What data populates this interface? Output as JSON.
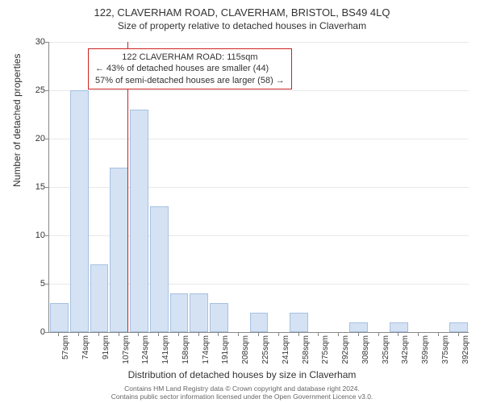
{
  "title": "122, CLAVERHAM ROAD, CLAVERHAM, BRISTOL, BS49 4LQ",
  "subtitle": "Size of property relative to detached houses in Claverham",
  "ylabel": "Number of detached properties",
  "xlabel": "Distribution of detached houses by size in Claverham",
  "chart": {
    "type": "histogram",
    "ylim": [
      0,
      30
    ],
    "ytick_step": 5,
    "bar_fill": "#d4e2f4",
    "bar_stroke": "#a8c0e0",
    "grid_color": "#e8e8e8",
    "axis_color": "#888888",
    "refline_color": "#cc2222",
    "refline_x_value": 115,
    "x_categories": [
      "57sqm",
      "74sqm",
      "91sqm",
      "107sqm",
      "124sqm",
      "141sqm",
      "158sqm",
      "174sqm",
      "191sqm",
      "208sqm",
      "225sqm",
      "241sqm",
      "258sqm",
      "275sqm",
      "292sqm",
      "308sqm",
      "325sqm",
      "342sqm",
      "359sqm",
      "375sqm",
      "392sqm"
    ],
    "values": [
      3,
      25,
      7,
      17,
      23,
      13,
      4,
      4,
      3,
      0,
      2,
      0,
      2,
      0,
      0,
      1,
      0,
      1,
      0,
      0,
      1
    ],
    "title_fontsize": 13,
    "label_fontsize": 12,
    "tick_fontsize": 11,
    "xtick_fontsize": 10,
    "background_color": "#ffffff"
  },
  "infobox": {
    "line1": "122 CLAVERHAM ROAD: 115sqm",
    "line2": "← 43% of detached houses are smaller (44)",
    "line3": "57% of semi-detached houses are larger (58) →",
    "border_color": "#cc2222",
    "fontsize": 11
  },
  "footer": {
    "line1": "Contains HM Land Registry data © Crown copyright and database right 2024.",
    "line2": "Contains public sector information licensed under the Open Government Licence v3.0."
  }
}
